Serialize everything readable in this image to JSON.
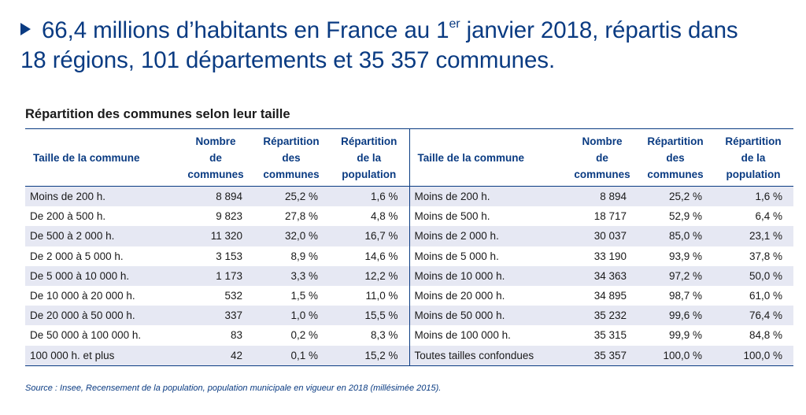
{
  "headline": {
    "part1": "66,4 millions d’habitants en France au 1",
    "sup": "er",
    "part2": " janvier 2018, répartis dans",
    "line2": "18 régions, 101 départements et 35 357 communes."
  },
  "table_title": "Répartition des communes selon leur taille",
  "left_headers": {
    "col1": "Taille de la commune",
    "col2": [
      "Nombre",
      "de",
      "communes"
    ],
    "col3": [
      "Répartition",
      "des",
      "communes"
    ],
    "col4": [
      "Répartition",
      "de la",
      "population"
    ]
  },
  "right_headers": {
    "col1": "Taille de la commune",
    "col2": [
      "Nombre",
      "de",
      "communes"
    ],
    "col3": [
      "Répartition",
      "des",
      "communes"
    ],
    "col4": [
      "Répartition",
      "de la",
      "population"
    ]
  },
  "rows": [
    {
      "l_size": "Moins de 200 h.",
      "l_nb": "8 894",
      "l_rc": "25,2 %",
      "l_rp": "1,6 %",
      "r_size": "Moins de 200 h.",
      "r_nb": "8 894",
      "r_rc": "25,2 %",
      "r_rp": "1,6 %"
    },
    {
      "l_size": "De 200 à 500 h.",
      "l_nb": "9 823",
      "l_rc": "27,8 %",
      "l_rp": "4,8 %",
      "r_size": "Moins de 500 h.",
      "r_nb": "18 717",
      "r_rc": "52,9 %",
      "r_rp": "6,4 %"
    },
    {
      "l_size": "De 500 à 2 000 h.",
      "l_nb": "11 320",
      "l_rc": "32,0 %",
      "l_rp": "16,7 %",
      "r_size": "Moins de 2 000 h.",
      "r_nb": "30 037",
      "r_rc": "85,0 %",
      "r_rp": "23,1 %"
    },
    {
      "l_size": "De 2 000 à 5 000 h.",
      "l_nb": "3 153",
      "l_rc": "8,9 %",
      "l_rp": "14,6 %",
      "r_size": "Moins de 5 000 h.",
      "r_nb": "33 190",
      "r_rc": "93,9 %",
      "r_rp": "37,8 %"
    },
    {
      "l_size": "De 5 000 à 10 000 h.",
      "l_nb": "1 173",
      "l_rc": "3,3 %",
      "l_rp": "12,2 %",
      "r_size": "Moins de 10 000 h.",
      "r_nb": "34 363",
      "r_rc": "97,2 %",
      "r_rp": "50,0 %"
    },
    {
      "l_size": "De 10 000 à 20 000 h.",
      "l_nb": "532",
      "l_rc": "1,5 %",
      "l_rp": "11,0 %",
      "r_size": "Moins de 20 000 h.",
      "r_nb": "34 895",
      "r_rc": "98,7 %",
      "r_rp": "61,0 %"
    },
    {
      "l_size": "De 20 000 à 50 000 h.",
      "l_nb": "337",
      "l_rc": "1,0 %",
      "l_rp": "15,5 %",
      "r_size": "Moins de 50 000 h.",
      "r_nb": "35 232",
      "r_rc": "99,6 %",
      "r_rp": "76,4 %"
    },
    {
      "l_size": "De 50 000 à 100 000 h.",
      "l_nb": "83",
      "l_rc": "0,2 %",
      "l_rp": "8,3 %",
      "r_size": "Moins de 100 000 h.",
      "r_nb": "35 315",
      "r_rc": "99,9 %",
      "r_rp": "84,8 %"
    },
    {
      "l_size": "100 000 h. et plus",
      "l_nb": "42",
      "l_rc": "0,1 %",
      "l_rp": "15,2 %",
      "r_size": "Toutes tailles confondues",
      "r_nb": "35 357",
      "r_rc": "100,0 %",
      "r_rp": "100,0 %"
    }
  ],
  "source": "Source : Insee, Recensement de la population, population municipale en vigueur en 2018 (millésimée 2015).",
  "colors": {
    "accent": "#0a3b82",
    "row_shade": "#e6e8f3"
  }
}
